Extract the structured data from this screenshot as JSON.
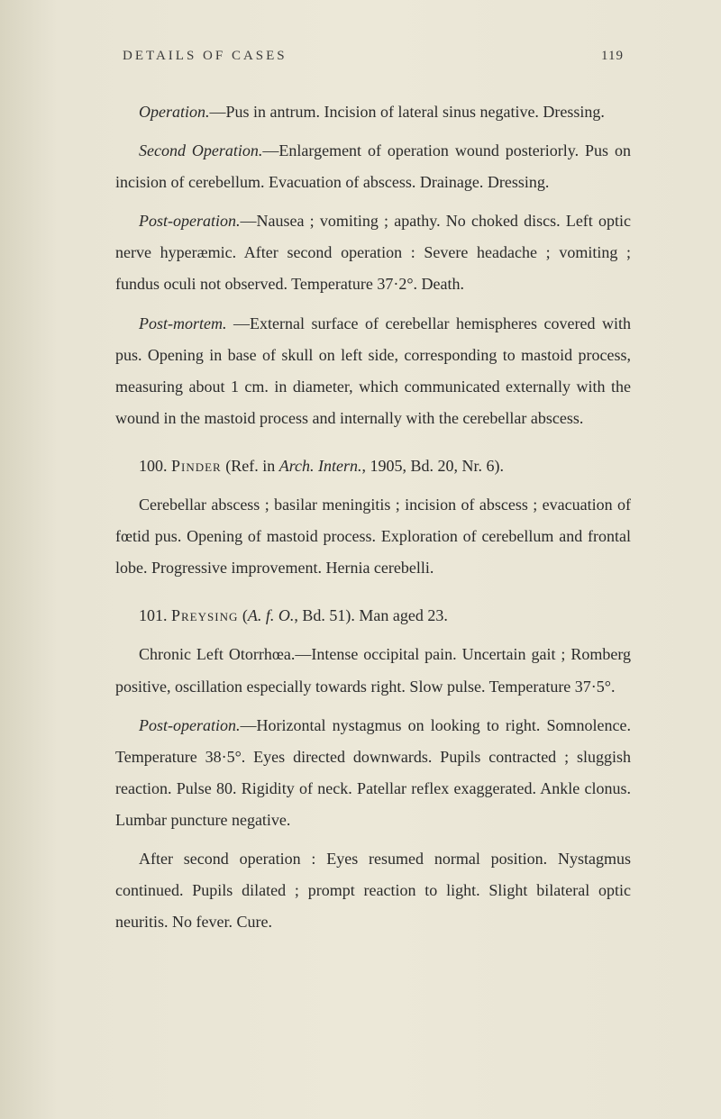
{
  "header": {
    "title": "DETAILS OF CASES",
    "pageNumber": "119"
  },
  "paragraphs": {
    "p1_label": "Operation.",
    "p1_text": "—Pus in antrum. Incision of lateral sinus negative. Dressing.",
    "p2_label": "Second Operation.",
    "p2_text": "—Enlargement of operation wound posteriorly. Pus on incision of cerebellum. Evacuation of abscess. Drainage. Dressing.",
    "p3_label": "Post-operation.",
    "p3_text": "—Nausea ; vomiting ; apathy. No choked discs. Left optic nerve hyperæmic. After second opera­tion : Severe headache ; vomiting ; fundus oculi not observed. Temperature 37·2°. Death.",
    "p4_label": "Post-mortem.",
    "p4_text": " —External surface of cerebellar hemi­spheres covered with pus. Opening in base of skull on left side, corresponding to mastoid process, measuring about 1 cm. in diameter, which communicated ex­ternally with the wound in the mastoid process and internally with the cerebellar abscess.",
    "p5_num": "100. ",
    "p5_name": "Pinder",
    "p5_ref1": " (Ref. in ",
    "p5_journal": "Arch. Intern.",
    "p5_ref2": ", 1905, Bd. 20, Nr. 6).",
    "p6_text": "Cerebellar abscess ; basilar meningitis ; incision of abscess ; evacuation of fœtid pus. Opening of mastoid process. Exploration of cerebellum and frontal lobe. Progressive improvement. Hernia cerebelli.",
    "p7_num": "101. ",
    "p7_name": "Preysing",
    "p7_ref1": " (",
    "p7_journal": "A. f. O.",
    "p7_ref2": ", Bd. 51). Man aged 23.",
    "p8_bold": "Chronic Left Otorrhœa.",
    "p8_text": "—Intense occipital pain. Un­certain gait ; Romberg positive, oscillation especially towards right. Slow pulse. Temperature 37·5°.",
    "p9_label": "Post-operation.",
    "p9_text": "—Horizontal nystagmus on looking to right. Somnolence. Temperature 38·5°. Eyes directed downwards. Pupils contracted ; sluggish reaction. Pulse 80. Rigidity of neck. Patellar reflex exaggerated. Ankle clonus. Lumbar puncture negative.",
    "p10_text": "After second operation : Eyes resumed normal position. Nystagmus continued. Pupils dilated ; prompt reaction to light. Slight bilateral optic neuritis. No fever. Cure."
  }
}
